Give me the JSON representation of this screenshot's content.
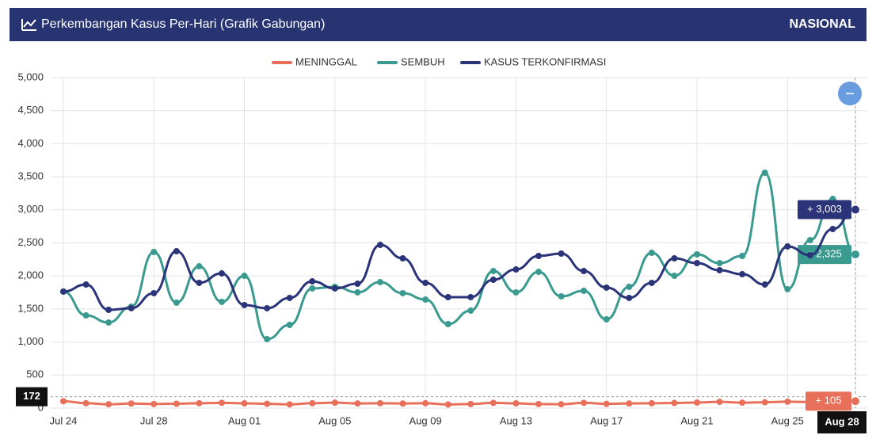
{
  "header": {
    "title": "Perkembangan Kasus Per-Hari (Grafik Gabungan)",
    "region": "NASIONAL"
  },
  "chart_data": {
    "type": "line",
    "categories": [
      "Jul 24",
      null,
      null,
      null,
      "Jul 28",
      null,
      null,
      null,
      "Aug 01",
      null,
      null,
      null,
      "Aug 05",
      null,
      null,
      null,
      "Aug 09",
      null,
      null,
      null,
      "Aug 13",
      null,
      null,
      null,
      "Aug 17",
      null,
      null,
      null,
      "Aug 21",
      null,
      null,
      null,
      "Aug 25",
      null,
      null,
      "Aug 28"
    ],
    "series": [
      {
        "name": "MENINGGAL",
        "color": "#e8705a",
        "values": [
          104,
          74,
          58,
          69,
          62,
          66,
          74,
          80,
          72,
          65,
          56,
          73,
          82,
          70,
          74,
          69,
          74,
          55,
          62,
          79,
          72,
          61,
          58,
          80,
          64,
          70,
          73,
          78,
          84,
          95,
          82,
          88,
          97,
          93,
          92,
          105
        ],
        "value_labels": [
          null,
          null,
          null,
          null,
          null,
          null,
          null,
          null,
          null,
          null,
          null,
          null,
          null,
          null,
          null,
          null,
          null,
          null,
          null,
          null,
          null,
          null,
          null,
          null,
          null,
          null,
          null,
          null,
          null,
          null,
          null,
          null,
          null,
          null,
          null,
          "+ 105"
        ]
      },
      {
        "name": "SEMBUH",
        "color": "#3a9a8f",
        "values": [
          1763,
          1403,
          1295,
          1535,
          2362,
          1595,
          2146,
          1607,
          2002,
          1043,
          1259,
          1811,
          1835,
          1751,
          1906,
          1739,
          1643,
          1271,
          1475,
          2074,
          1751,
          2062,
          1691,
          1775,
          1343,
          1835,
          2350,
          2002,
          2326,
          2194,
          2302,
          3561,
          1799,
          2542,
          3165,
          2325
        ],
        "value_labels": [
          null,
          null,
          null,
          null,
          null,
          null,
          null,
          null,
          null,
          null,
          null,
          null,
          null,
          null,
          null,
          null,
          null,
          null,
          null,
          null,
          null,
          null,
          null,
          null,
          null,
          null,
          null,
          null,
          null,
          null,
          null,
          null,
          null,
          null,
          null,
          "+ 2,325"
        ]
      },
      {
        "name": "KASUS TERKONFIRMASI",
        "color": "#2b3478",
        "values": [
          1763,
          1870,
          1487,
          1511,
          1739,
          2374,
          1895,
          2038,
          1559,
          1511,
          1667,
          1918,
          1811,
          1882,
          2470,
          2266,
          1895,
          1679,
          1679,
          1942,
          2098,
          2302,
          2338,
          2074,
          1823,
          1667,
          1895,
          2266,
          2194,
          2086,
          2026,
          1870,
          2446,
          2314,
          2710,
          3003
        ],
        "value_labels": [
          null,
          null,
          null,
          null,
          null,
          null,
          null,
          null,
          null,
          null,
          null,
          null,
          null,
          null,
          null,
          null,
          null,
          null,
          null,
          null,
          null,
          null,
          null,
          null,
          null,
          null,
          null,
          null,
          null,
          null,
          null,
          null,
          null,
          null,
          null,
          "+ 3,003"
        ]
      }
    ],
    "ylim": [
      0,
      5000
    ],
    "yticks": [
      0,
      500,
      {
        "value": 1000,
        "label": "1,000"
      },
      {
        "value": 1500,
        "label": "1,500"
      },
      {
        "value": 2000,
        "label": "2,000"
      },
      {
        "value": 2500,
        "label": "2,500"
      },
      {
        "value": 3000,
        "label": "3,000"
      },
      {
        "value": 3500,
        "label": "3,500"
      },
      {
        "value": 4000,
        "label": "4,000"
      },
      {
        "value": 4500,
        "label": "4,500"
      },
      {
        "value": 5000,
        "label": "5,000"
      }
    ],
    "grid": true,
    "crosshair_y": 172
  }
}
